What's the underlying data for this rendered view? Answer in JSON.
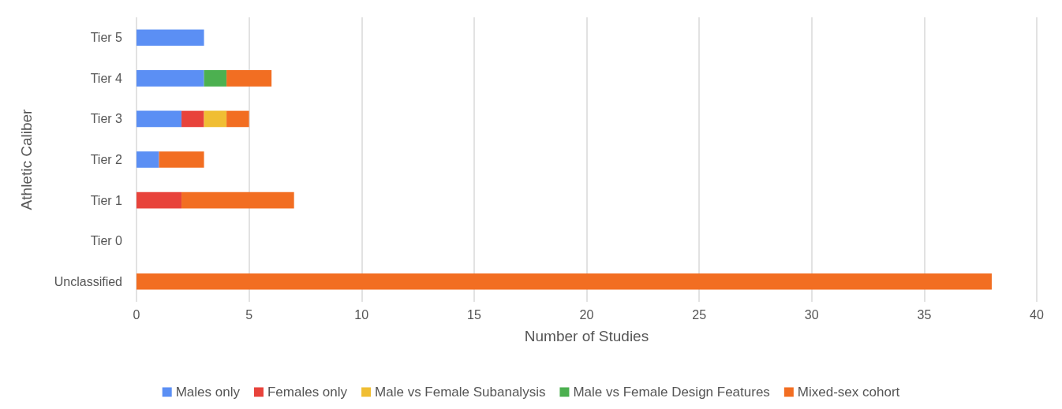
{
  "chart_data": {
    "type": "bar",
    "orientation": "horizontal",
    "stacked": true,
    "xlabel": "Number of Studies",
    "ylabel": "Athletic Caliber",
    "categories": [
      "Tier 5",
      "Tier 4",
      "Tier 3",
      "Tier 2",
      "Tier 1",
      "Tier 0",
      "Unclassified"
    ],
    "series": [
      {
        "name": "Males only",
        "color": "#5b8ff4",
        "values": [
          3,
          3,
          2,
          1,
          null,
          null,
          null
        ]
      },
      {
        "name": "Females only",
        "color": "#e8433b",
        "values": [
          null,
          null,
          1,
          null,
          2,
          null,
          null
        ]
      },
      {
        "name": "Male vs Female Subanalysis",
        "color": "#f0be33",
        "values": [
          null,
          null,
          1,
          null,
          null,
          null,
          null
        ]
      },
      {
        "name": "Male vs Female Design Features",
        "color": "#4cb050",
        "values": [
          null,
          1,
          null,
          null,
          null,
          null,
          null
        ]
      },
      {
        "name": "Mixed-sex cohort",
        "color": "#f26e22",
        "values": [
          null,
          2,
          1,
          2,
          5,
          null,
          38
        ]
      }
    ],
    "xlim": [
      0,
      40
    ],
    "xticks": [
      0,
      5,
      10,
      15,
      20,
      25,
      30,
      35,
      40
    ],
    "grid": "x",
    "legend": "bottom"
  }
}
